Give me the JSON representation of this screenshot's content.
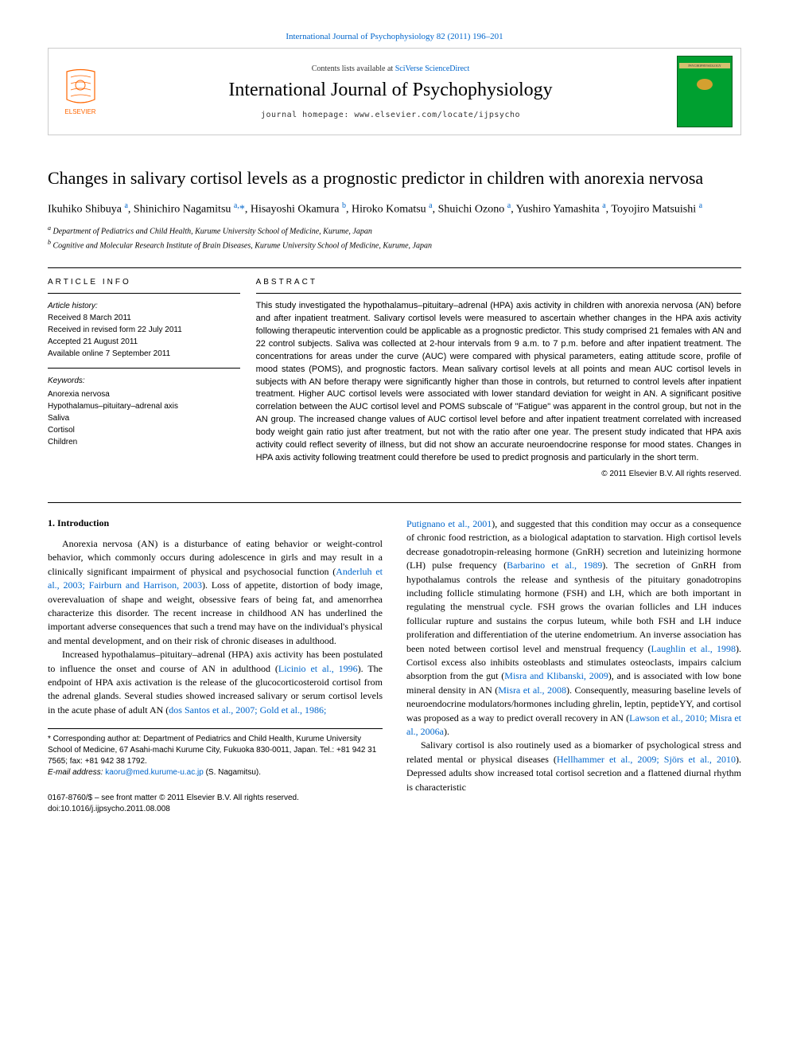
{
  "top_link": "International Journal of Psychophysiology 82 (2011) 196–201",
  "header": {
    "contents_prefix": "Contents lists available at ",
    "contents_link": "SciVerse ScienceDirect",
    "journal_title": "International Journal of Psychophysiology",
    "homepage_prefix": "journal homepage: ",
    "homepage_url": "www.elsevier.com/locate/ijpsycho",
    "cover_text": "PSYCHOPHYSIOLOGY"
  },
  "article": {
    "title": "Changes in salivary cortisol levels as a prognostic predictor in children with anorexia nervosa",
    "authors_html": "Ikuhiko Shibuya <sup>a</sup>, Shinichiro Nagamitsu <sup>a,</sup><span class='star'>*</span>, Hisayoshi Okamura <sup>b</sup>, Hiroko Komatsu <sup>a</sup>, Shuichi Ozono <sup>a</sup>, Yushiro Yamashita <sup>a</sup>, Toyojiro Matsuishi <sup>a</sup>",
    "affiliations": {
      "a": "Department of Pediatrics and Child Health, Kurume University School of Medicine, Kurume, Japan",
      "b": "Cognitive and Molecular Research Institute of Brain Diseases, Kurume University School of Medicine, Kurume, Japan"
    }
  },
  "article_info": {
    "heading": "article info",
    "history_label": "Article history:",
    "received": "Received 8 March 2011",
    "revised": "Received in revised form 22 July 2011",
    "accepted": "Accepted 21 August 2011",
    "online": "Available online 7 September 2011",
    "keywords_label": "Keywords:",
    "keywords": [
      "Anorexia nervosa",
      "Hypothalamus–pituitary–adrenal axis",
      "Saliva",
      "Cortisol",
      "Children"
    ]
  },
  "abstract": {
    "heading": "abstract",
    "text": "This study investigated the hypothalamus–pituitary–adrenal (HPA) axis activity in children with anorexia nervosa (AN) before and after inpatient treatment. Salivary cortisol levels were measured to ascertain whether changes in the HPA axis activity following therapeutic intervention could be applicable as a prognostic predictor. This study comprised 21 females with AN and 22 control subjects. Saliva was collected at 2-hour intervals from 9 a.m. to 7 p.m. before and after inpatient treatment. The concentrations for areas under the curve (AUC) were compared with physical parameters, eating attitude score, profile of mood states (POMS), and prognostic factors. Mean salivary cortisol levels at all points and mean AUC cortisol levels in subjects with AN before therapy were significantly higher than those in controls, but returned to control levels after inpatient treatment. Higher AUC cortisol levels were associated with lower standard deviation for weight in AN. A significant positive correlation between the AUC cortisol level and POMS subscale of \"Fatigue\" was apparent in the control group, but not in the AN group. The increased change values of AUC cortisol level before and after inpatient treatment correlated with increased body weight gain ratio just after treatment, but not with the ratio after one year. The present study indicated that HPA axis activity could reflect severity of illness, but did not show an accurate neuroendocrine response for mood states. Changes in HPA axis activity following treatment could therefore be used to predict prognosis and particularly in the short term.",
    "copyright": "© 2011 Elsevier B.V. All rights reserved."
  },
  "body": {
    "intro_heading": "1. Introduction",
    "para1_a": "Anorexia nervosa (AN) is a disturbance of eating behavior or weight-control behavior, which commonly occurs during adolescence in girls and may result in a clinically significant impairment of physical and psychosocial function (",
    "para1_link1": "Anderluh et al., 2003; Fairburn and Harrison, 2003",
    "para1_b": "). Loss of appetite, distortion of body image, overevaluation of shape and weight, obsessive fears of being fat, and amenorrhea characterize this disorder. The recent increase in childhood AN has underlined the important adverse consequences that such a trend may have on the individual's physical and mental development, and on their risk of chronic diseases in adulthood.",
    "para2_a": "Increased hypothalamus–pituitary–adrenal (HPA) axis activity has been postulated to influence the onset and course of AN in adulthood (",
    "para2_link1": "Licinio et al., 1996",
    "para2_b": "). The endpoint of HPA axis activation is the release of the glucocorticosteroid cortisol from the adrenal glands. Several studies showed increased salivary or serum cortisol levels in the acute phase of adult AN (",
    "para2_link2": "dos Santos et al., 2007; Gold et al., 1986; ",
    "para3_link1": "Putignano et al., 2001",
    "para3_a": "), and suggested that this condition may occur as a consequence of chronic food restriction, as a biological adaptation to starvation. High cortisol levels decrease gonadotropin-releasing hormone (GnRH) secretion and luteinizing hormone (LH) pulse frequency (",
    "para3_link2": "Barbarino et al., 1989",
    "para3_b": "). The secretion of GnRH from hypothalamus controls the release and synthesis of the pituitary gonadotropins including follicle stimulating hormone (FSH) and LH, which are both important in regulating the menstrual cycle. FSH grows the ovarian follicles and LH induces follicular rupture and sustains the corpus luteum, while both FSH and LH induce proliferation and differentiation of the uterine endometrium. An inverse association has been noted between cortisol level and menstrual frequency (",
    "para3_link3": "Laughlin et al., 1998",
    "para3_c": "). Cortisol excess also inhibits osteoblasts and stimulates osteoclasts, impairs calcium absorption from the gut (",
    "para3_link4": "Misra and Klibanski, 2009",
    "para3_d": "), and is associated with low bone mineral density in AN (",
    "para3_link5": "Misra et al., 2008",
    "para3_e": "). Consequently, measuring baseline levels of neuroendocrine modulators/hormones including ghrelin, leptin, peptideYY, and cortisol was proposed as a way to predict overall recovery in AN (",
    "para3_link6": "Lawson et al., 2010; Misra et al., 2006a",
    "para3_f": ").",
    "para4_a": "Salivary cortisol is also routinely used as a biomarker of psychological stress and related mental or physical diseases (",
    "para4_link1": "Hellhammer et al., 2009; Sjörs et al., 2010",
    "para4_b": "). Depressed adults show increased total cortisol secretion and a flattened diurnal rhythm is characteristic"
  },
  "footer": {
    "corresp": "* Corresponding author at: Department of Pediatrics and Child Health, Kurume University School of Medicine, 67 Asahi-machi Kurume City, Fukuoka 830-0011, Japan. Tel.: +81 942 31 7565; fax: +81 942 38 1792.",
    "email_label": "E-mail address: ",
    "email": "kaoru@med.kurume-u.ac.jp",
    "email_suffix": " (S. Nagamitsu).",
    "issn": "0167-8760/$ – see front matter © 2011 Elsevier B.V. All rights reserved.",
    "doi": "doi:10.1016/j.ijpsycho.2011.08.008"
  },
  "colors": {
    "link": "#0066cc",
    "cover_bg": "#00a030",
    "logo_orange": "#ff6600"
  }
}
